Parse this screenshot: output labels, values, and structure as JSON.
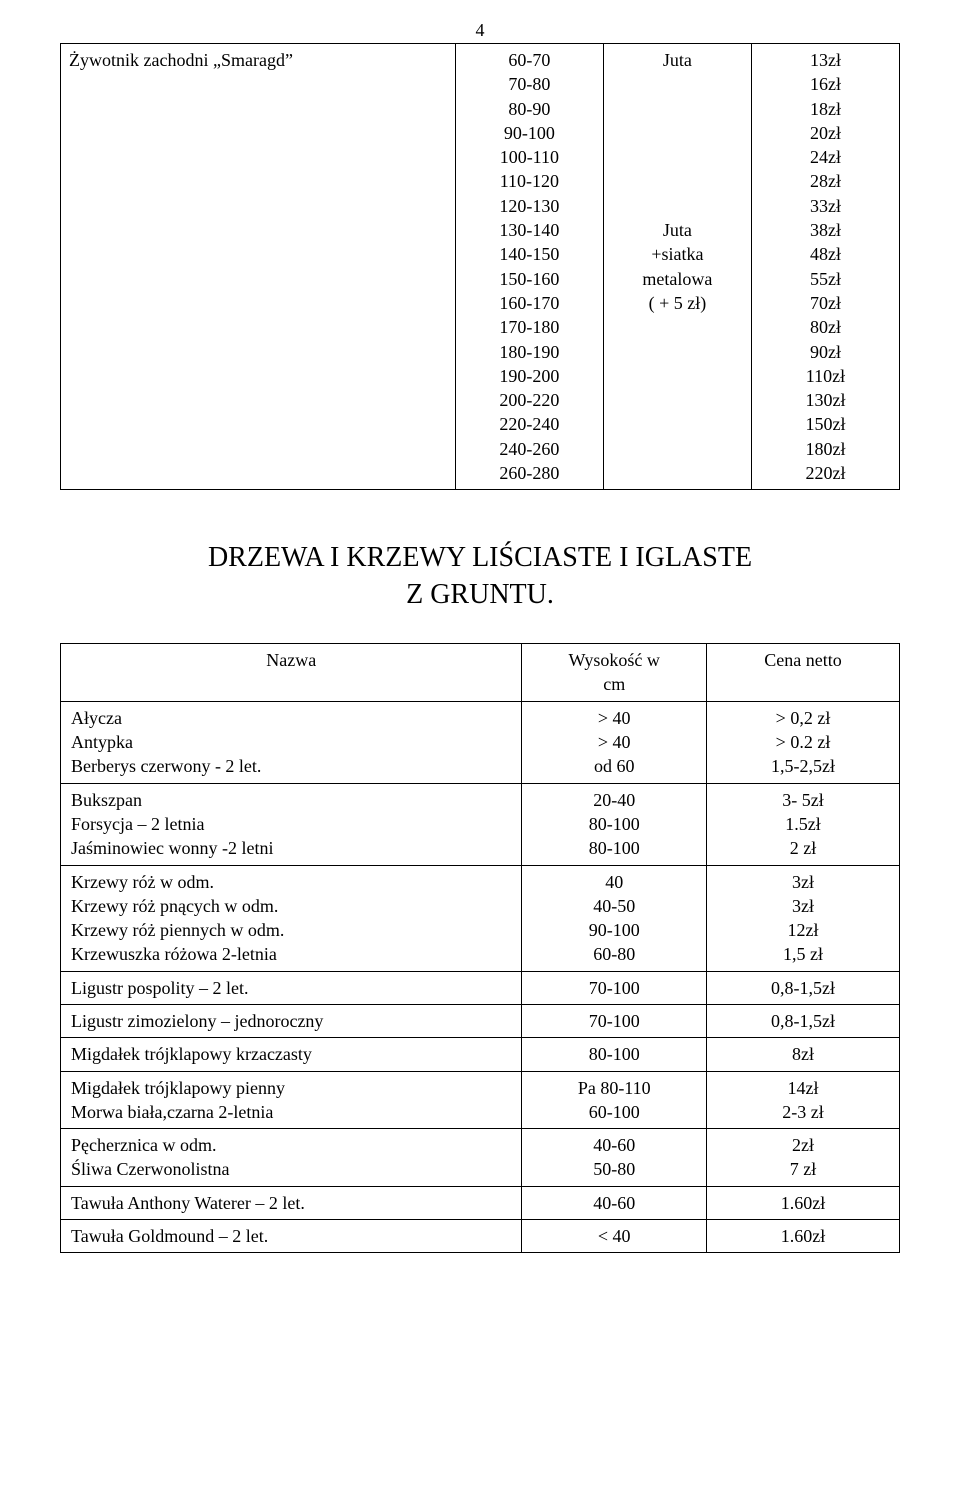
{
  "pageNumber": "4",
  "topTable": {
    "name": "Żywotnik zachodni „Smaragd”",
    "sizes": [
      "60-70",
      "70-80",
      "80-90",
      "90-100",
      "100-110",
      "110-120",
      "120-130",
      "130-140",
      "140-150",
      "150-160",
      "160-170",
      "170-180",
      "180-190",
      "190-200",
      "200-220",
      "220-240",
      "240-260",
      "260-280"
    ],
    "material": [
      "Juta",
      "",
      "",
      "",
      "",
      "",
      "",
      "Juta",
      "+siatka",
      "metalowa",
      "( + 5 zł)",
      "",
      "",
      "",
      "",
      "",
      "",
      ""
    ],
    "prices": [
      "13zł",
      "16zł",
      "18zł",
      "20zł",
      "24zł",
      "28zł",
      "33zł",
      "38zł",
      "48zł",
      "55zł",
      "70zł",
      "80zł",
      "90zł",
      "110zł",
      "130zł",
      "150zł",
      "180zł",
      "220zł"
    ]
  },
  "sectionTitle1": "DRZEWA I KRZEWY LIŚCIASTE I IGLASTE",
  "sectionTitle2": "Z GRUNTU.",
  "header": {
    "name": "Nazwa",
    "h1": "Wysokość w",
    "h2": "cm",
    "price": "Cena netto"
  },
  "rows": [
    {
      "names": [
        "Ałycza",
        "Antypka",
        "Berberys czerwony  - 2  let."
      ],
      "hs": [
        "> 40",
        "> 40",
        "od 60"
      ],
      "ps": [
        "> 0,2 zł",
        "> 0.2 zł",
        "1,5-2,5zł"
      ]
    },
    {
      "names": [
        "Bukszpan",
        "Forsycja – 2 letnia",
        "Jaśminowiec wonny -2 letni"
      ],
      "hs": [
        "20-40",
        "80-100",
        "80-100"
      ],
      "ps": [
        "3- 5zł",
        "1.5zł",
        "2 zł"
      ]
    },
    {
      "names": [
        "Krzewy róż w odm.",
        "Krzewy róż pnących w odm.",
        "Krzewy róż piennych w odm.",
        "Krzewuszka różowa 2-letnia"
      ],
      "hs": [
        "40",
        "40-50",
        "90-100",
        "60-80"
      ],
      "ps": [
        "3zł",
        "3zł",
        "12zł",
        "1,5 zł"
      ]
    },
    {
      "names": [
        "Ligustr  pospolity – 2 let."
      ],
      "hs": [
        "70-100"
      ],
      "ps": [
        "0,8-1,5zł"
      ]
    },
    {
      "names": [
        "Ligustr zimozielony – jednoroczny"
      ],
      "hs": [
        "70-100"
      ],
      "ps": [
        "0,8-1,5zł"
      ]
    },
    {
      "names": [
        "Migdałek trójklapowy krzaczasty"
      ],
      "hs": [
        "80-100"
      ],
      "ps": [
        "8zł"
      ]
    },
    {
      "names": [
        "Migdałek trójklapowy pienny",
        "Morwa biała,czarna 2-letnia"
      ],
      "hs": [
        "Pa 80-110",
        "60-100"
      ],
      "ps": [
        "14zł",
        "2-3 zł"
      ]
    },
    {
      "names": [
        "Pęcherznica w odm.",
        "Śliwa Czerwonolistna"
      ],
      "hs": [
        "40-60",
        "50-80"
      ],
      "ps": [
        "2zł",
        "7 zł"
      ]
    },
    {
      "names": [
        "Tawuła Anthony Waterer – 2 let."
      ],
      "hs": [
        "40-60"
      ],
      "ps": [
        "1.60zł"
      ]
    },
    {
      "names": [
        "Tawuła Goldmound – 2 let."
      ],
      "hs": [
        "< 40"
      ],
      "ps": [
        "1.60zł"
      ]
    }
  ]
}
